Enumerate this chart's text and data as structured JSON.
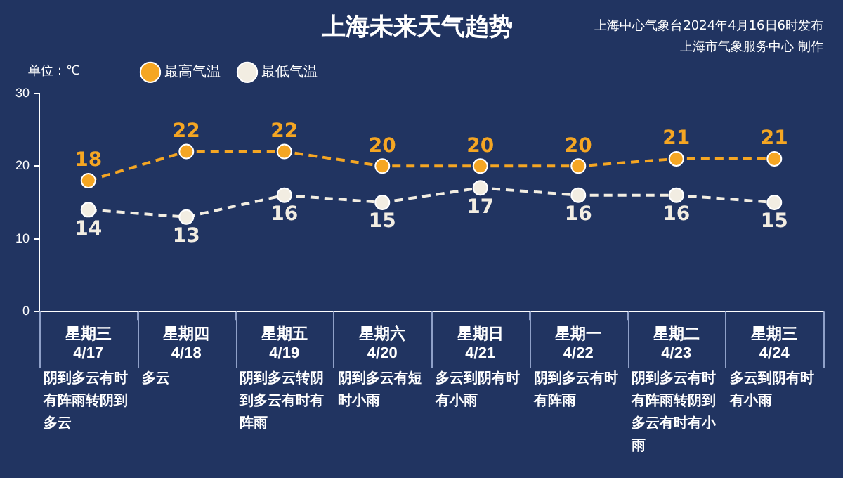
{
  "chart_data": {
    "type": "line",
    "title": "上海未来天气趋势",
    "ylabel": "单位：℃",
    "categories": [
      "星期三\n4/17",
      "星期四\n4/18",
      "星期五\n4/19",
      "星期六\n4/20",
      "星期日\n4/21",
      "星期一\n4/22",
      "星期二\n4/23",
      "星期三\n4/24"
    ],
    "series": [
      {
        "name": "最高气温",
        "color": "#f5a623",
        "values": [
          18,
          22,
          22,
          20,
          20,
          20,
          21,
          21
        ]
      },
      {
        "name": "最低气温",
        "color": "#f2ede2",
        "values": [
          14,
          13,
          16,
          15,
          17,
          16,
          16,
          15
        ]
      }
    ],
    "ylim": [
      0,
      30
    ],
    "yticks": [
      0,
      10,
      20,
      30
    ],
    "grid": false,
    "legend": "top left",
    "marker": "circle",
    "line_style": "dashed",
    "data_labels": true,
    "annotations": [
      "上海中心气象台2024年4月16日6时发布",
      "上海市气象服务中心 制作",
      "阴到多云有时有阵雨转阴到多云",
      "多云",
      "阴到多云转阴到多云有时有阵雨",
      "阴到多云有短时小雨",
      "多云到阴有时有小雨",
      "阴到多云有时有阵雨",
      "阴到多云有时有阵雨转阴到多云有时有小雨",
      "多云到阴有时有小雨"
    ]
  }
}
